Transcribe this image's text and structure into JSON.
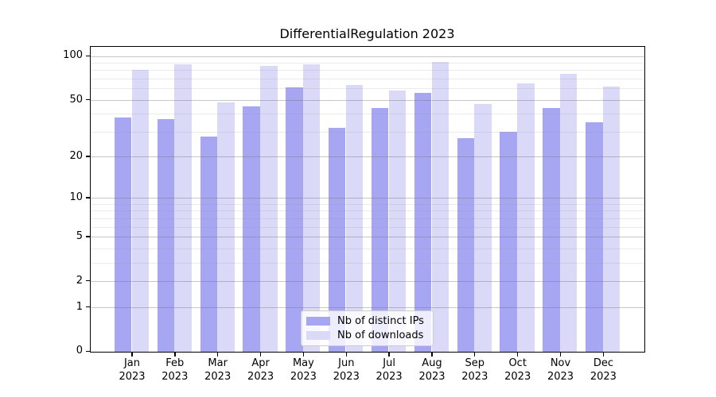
{
  "chart_data": {
    "type": "bar",
    "title": "DifferentialRegulation 2023",
    "categories": [
      "Jan",
      "Feb",
      "Mar",
      "Apr",
      "May",
      "Jun",
      "Jul",
      "Aug",
      "Sep",
      "Oct",
      "Nov",
      "Dec"
    ],
    "category_year": "2023",
    "series": [
      {
        "name": "Nb of distinct IPs",
        "color": "#a6a6f2",
        "values": [
          38,
          37,
          28,
          45,
          61,
          32,
          44,
          56,
          27,
          30,
          44,
          35
        ]
      },
      {
        "name": "Nb of downloads",
        "color": "#dadaf8",
        "values": [
          81,
          88,
          48,
          86,
          88,
          64,
          58,
          92,
          47,
          65,
          76,
          62
        ]
      }
    ],
    "yscale": "log10(1+x)",
    "yticks": [
      0,
      1,
      2,
      5,
      10,
      20,
      50,
      100
    ],
    "minor_yticks": [
      3,
      4,
      6,
      7,
      8,
      9,
      30,
      40,
      60,
      70,
      80,
      90
    ],
    "ylim": [
      0,
      117
    ],
    "grid": true,
    "legend_position": "lower center inside plot",
    "colors": {
      "bar_distinct_ips": "#a6a6f2",
      "bar_downloads": "#dadaf8",
      "grid_major": "rgba(120,120,120,0.42)",
      "grid_minor": "rgba(150,150,150,0.20)",
      "axis": "#000000",
      "text": "#000000",
      "legend_border": "#cccccc",
      "legend_background": "rgba(255,255,255,0.8)"
    }
  }
}
